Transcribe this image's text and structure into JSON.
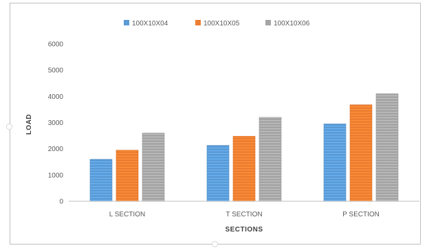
{
  "chart_data": {
    "type": "bar",
    "title": "",
    "xlabel": "SECTIONS",
    "ylabel": "LOAD",
    "categories": [
      "L SECTION",
      "T SECTION",
      "P SECTION"
    ],
    "series": [
      {
        "name": "100X10X04",
        "color": "#5b9bd5",
        "values": [
          1600,
          2130,
          2950
        ]
      },
      {
        "name": "100X10X05",
        "color": "#ed7d31",
        "values": [
          1950,
          2480,
          3680
        ]
      },
      {
        "name": "100X10X06",
        "color": "#a5a5a5",
        "values": [
          2600,
          3200,
          4100
        ]
      }
    ],
    "ylim": [
      0,
      6000
    ],
    "yticks": [
      0,
      1000,
      2000,
      3000,
      4000,
      5000,
      6000
    ],
    "grid": false,
    "legend_position": "top",
    "bar_style": "horizontally striped fill"
  }
}
